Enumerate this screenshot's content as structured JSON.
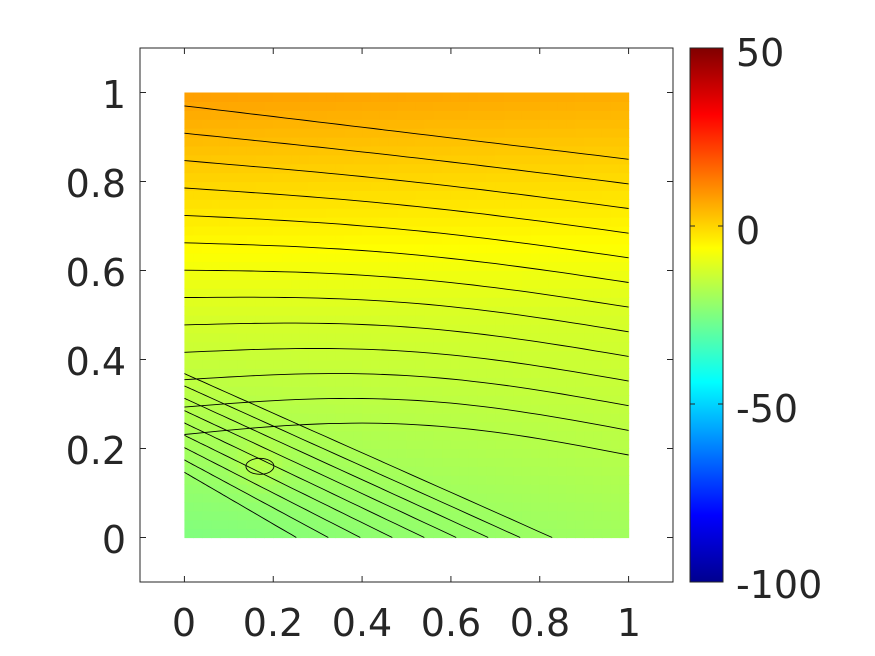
{
  "chart_data": {
    "type": "heatmap",
    "subtype": "filled-contour",
    "title": "",
    "xlabel": "",
    "ylabel": "",
    "xlim": [
      -0.1,
      1.1
    ],
    "ylim": [
      -0.1,
      1.1
    ],
    "x_ticks": [
      "0",
      "0.2",
      "0.4",
      "0.6",
      "0.8",
      "1"
    ],
    "y_ticks": [
      "0",
      "0.2",
      "0.4",
      "0.6",
      "0.8",
      "1"
    ],
    "colorbar": {
      "colormap": "jet",
      "range": [
        -100,
        50
      ],
      "ticks": [
        "50",
        "0",
        "-50",
        "-100"
      ]
    },
    "field": {
      "domain_x": [
        0,
        1
      ],
      "domain_y": [
        0,
        1
      ],
      "value_at_top_left": 8,
      "value_at_top_right": 6,
      "value_at_mid_height": -12,
      "value_at_bottom_left": -25,
      "value_at_bottom_right": -20,
      "local_extremum": {
        "x": 0.17,
        "y": 0.16
      }
    },
    "contour_lines": 22,
    "contour_color": "#000000",
    "grid": false
  }
}
